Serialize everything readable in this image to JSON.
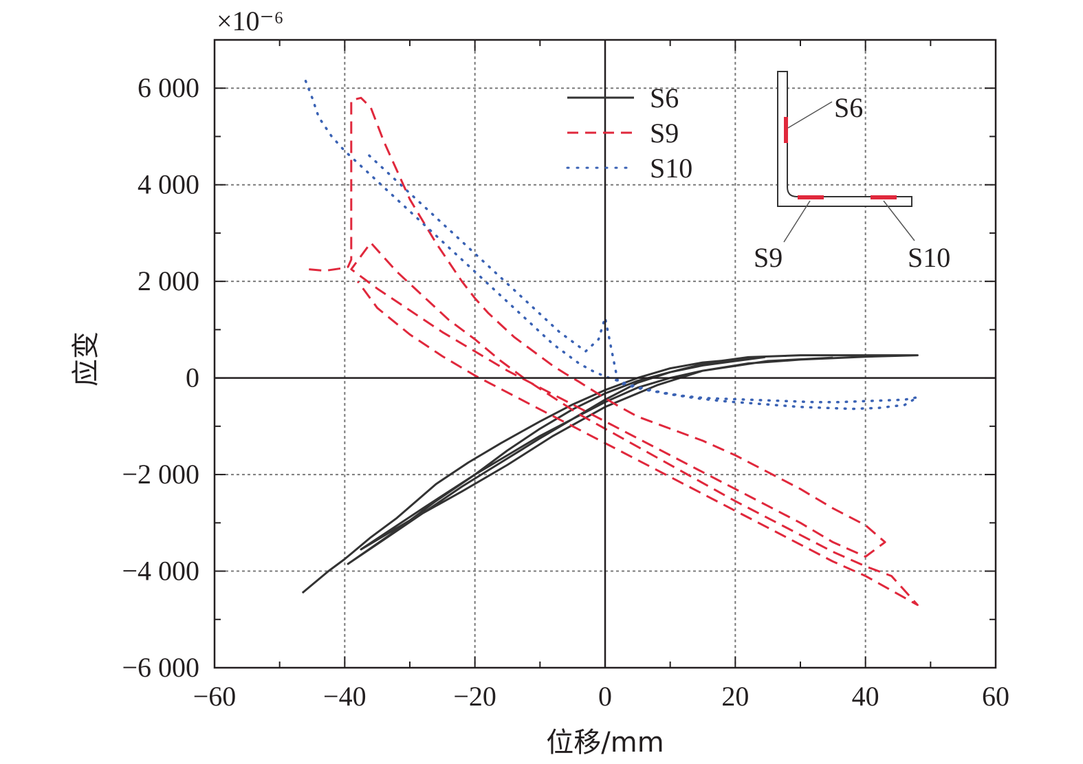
{
  "chart_data": {
    "type": "line",
    "title": "",
    "xlabel": "位移/mm",
    "ylabel": "应变",
    "y_multiplier": "×10⁻⁶",
    "xlim": [
      -60,
      60
    ],
    "ylim": [
      -6000,
      7000
    ],
    "x_ticks": [
      -60,
      -40,
      -20,
      0,
      20,
      40,
      60
    ],
    "x_tick_labels": [
      "−60",
      "−40",
      "−20",
      "0",
      "20",
      "40",
      "60"
    ],
    "y_ticks": [
      -6000,
      -4000,
      -2000,
      0,
      2000,
      4000,
      6000
    ],
    "y_tick_labels": [
      "−6 000",
      "−4 000",
      "−2 000",
      "0",
      "2 000",
      "4 000",
      "6 000"
    ],
    "grid": true,
    "legend_position": "top-center",
    "series": [
      {
        "name": "S6",
        "style": "solid",
        "color": "#333333",
        "points": [
          [
            -46.5,
            -4450
          ],
          [
            -42.5,
            -4000
          ],
          [
            -40,
            -3750
          ],
          [
            -36,
            -3300
          ],
          [
            -32,
            -2900
          ],
          [
            -26,
            -2200
          ],
          [
            -21,
            -1750
          ],
          [
            -16,
            -1350
          ],
          [
            -10,
            -900
          ],
          [
            -5,
            -550
          ],
          [
            0,
            -250
          ],
          [
            5,
            0
          ],
          [
            10,
            200
          ],
          [
            15,
            320
          ],
          [
            20,
            380
          ],
          [
            24.5,
            430
          ],
          [
            20,
            350
          ],
          [
            15,
            260
          ],
          [
            10,
            120
          ],
          [
            5,
            -60
          ],
          [
            0,
            -320
          ],
          [
            -5,
            -650
          ],
          [
            -10,
            -1050
          ],
          [
            -15,
            -1500
          ],
          [
            -20,
            -2000
          ],
          [
            -26,
            -2550
          ],
          [
            -32,
            -3150
          ],
          [
            -39.5,
            -3850
          ],
          [
            -34,
            -3350
          ],
          [
            -28,
            -2800
          ],
          [
            -22,
            -2250
          ],
          [
            -16,
            -1750
          ],
          [
            -10,
            -1250
          ],
          [
            -5,
            -850
          ],
          [
            0,
            -450
          ],
          [
            5,
            -100
          ],
          [
            10,
            120
          ],
          [
            16,
            320
          ],
          [
            22,
            430
          ],
          [
            30,
            470
          ],
          [
            40,
            470
          ],
          [
            48,
            470
          ],
          [
            40,
            440
          ],
          [
            30,
            380
          ],
          [
            22,
            300
          ],
          [
            15,
            150
          ],
          [
            10,
            0
          ],
          [
            5,
            -200
          ],
          [
            0,
            -500
          ],
          [
            -5,
            -850
          ],
          [
            -10,
            -1200
          ],
          [
            -15,
            -1600
          ],
          [
            -20,
            -2000
          ],
          [
            -28,
            -2700
          ],
          [
            -37.5,
            -3550
          ],
          [
            -30,
            -2950
          ],
          [
            -22,
            -2350
          ],
          [
            -15,
            -1800
          ],
          [
            -8,
            -1200
          ],
          [
            0,
            -600
          ],
          [
            8,
            -150
          ],
          [
            15,
            150
          ],
          [
            25,
            350
          ],
          [
            35,
            420
          ]
        ]
      },
      {
        "name": "S9",
        "style": "dashed",
        "color": "#e0283c",
        "points": [
          [
            -45.5,
            2250
          ],
          [
            -43,
            2220
          ],
          [
            -40,
            2280
          ],
          [
            -39.5,
            2300
          ],
          [
            -39,
            2450
          ],
          [
            -39,
            3800
          ],
          [
            -39,
            4500
          ],
          [
            -39,
            5750
          ],
          [
            -37.5,
            5800
          ],
          [
            -36,
            5600
          ],
          [
            -34,
            4900
          ],
          [
            -32,
            4300
          ],
          [
            -30,
            3700
          ],
          [
            -28,
            3250
          ],
          [
            -26,
            2800
          ],
          [
            -24,
            2400
          ],
          [
            -22,
            2000
          ],
          [
            -20,
            1650
          ],
          [
            -18,
            1350
          ],
          [
            -16,
            1100
          ],
          [
            -14,
            850
          ],
          [
            -12,
            650
          ],
          [
            -10,
            450
          ],
          [
            -8,
            250
          ],
          [
            -6,
            80
          ],
          [
            -4,
            -80
          ],
          [
            -2,
            -250
          ],
          [
            0,
            -420
          ],
          [
            2,
            -580
          ],
          [
            5,
            -800
          ],
          [
            10,
            -1050
          ],
          [
            15,
            -1300
          ],
          [
            20,
            -1600
          ],
          [
            25,
            -1950
          ],
          [
            30,
            -2300
          ],
          [
            35,
            -2700
          ],
          [
            40,
            -3050
          ],
          [
            43,
            -3400
          ],
          [
            40,
            -3700
          ],
          [
            35,
            -3400
          ],
          [
            30,
            -3000
          ],
          [
            25,
            -2650
          ],
          [
            20,
            -2300
          ],
          [
            15,
            -1950
          ],
          [
            10,
            -1600
          ],
          [
            5,
            -1250
          ],
          [
            0,
            -900
          ],
          [
            -5,
            -550
          ],
          [
            -10,
            -200
          ],
          [
            -15,
            150
          ],
          [
            -20,
            550
          ],
          [
            -25,
            950
          ],
          [
            -30,
            1400
          ],
          [
            -35,
            1850
          ],
          [
            -39,
            2250
          ],
          [
            -36,
            2800
          ],
          [
            -32,
            2200
          ],
          [
            -28,
            1700
          ],
          [
            -24,
            1200
          ],
          [
            -20,
            800
          ],
          [
            -16,
            350
          ],
          [
            -12,
            -50
          ],
          [
            -8,
            -400
          ],
          [
            -4,
            -750
          ],
          [
            0,
            -1050
          ],
          [
            4,
            -1350
          ],
          [
            8,
            -1650
          ],
          [
            12,
            -1950
          ],
          [
            16,
            -2250
          ],
          [
            20,
            -2550
          ],
          [
            25,
            -2900
          ],
          [
            30,
            -3250
          ],
          [
            35,
            -3600
          ],
          [
            40,
            -3900
          ],
          [
            44,
            -4100
          ],
          [
            48,
            -4700
          ],
          [
            44,
            -4400
          ],
          [
            40,
            -4100
          ],
          [
            35,
            -3800
          ],
          [
            30,
            -3450
          ],
          [
            25,
            -3100
          ],
          [
            20,
            -2750
          ],
          [
            15,
            -2400
          ],
          [
            10,
            -2050
          ],
          [
            5,
            -1700
          ],
          [
            0,
            -1350
          ],
          [
            -5,
            -1000
          ],
          [
            -10,
            -650
          ],
          [
            -15,
            -300
          ],
          [
            -20,
            50
          ],
          [
            -25,
            450
          ],
          [
            -30,
            900
          ],
          [
            -35,
            1450
          ],
          [
            -38,
            2000
          ]
        ]
      },
      {
        "name": "S10",
        "style": "dotted",
        "color": "#3a62b4",
        "points": [
          [
            -46,
            6150
          ],
          [
            -45,
            5800
          ],
          [
            -44,
            5400
          ],
          [
            -42,
            5000
          ],
          [
            -40,
            4700
          ],
          [
            -38,
            4450
          ],
          [
            -36,
            4200
          ],
          [
            -34,
            3950
          ],
          [
            -32,
            3700
          ],
          [
            -30,
            3450
          ],
          [
            -28,
            3200
          ],
          [
            -26,
            2950
          ],
          [
            -24,
            2700
          ],
          [
            -22,
            2450
          ],
          [
            -20,
            2200
          ],
          [
            -18,
            1950
          ],
          [
            -16,
            1700
          ],
          [
            -14,
            1450
          ],
          [
            -12,
            1200
          ],
          [
            -10,
            950
          ],
          [
            -8,
            700
          ],
          [
            -6,
            500
          ],
          [
            -4,
            300
          ],
          [
            -2,
            150
          ],
          [
            0,
            30
          ],
          [
            2,
            -60
          ],
          [
            4,
            -150
          ],
          [
            6,
            -220
          ],
          [
            8,
            -280
          ],
          [
            10,
            -330
          ],
          [
            12,
            -370
          ],
          [
            14,
            -400
          ],
          [
            16,
            -420
          ],
          [
            18,
            -430
          ],
          [
            20,
            -440
          ],
          [
            22,
            -450
          ],
          [
            24,
            -460
          ],
          [
            26,
            -470
          ],
          [
            28,
            -480
          ],
          [
            30,
            -490
          ],
          [
            32,
            -500
          ],
          [
            34,
            -500
          ],
          [
            36,
            -500
          ],
          [
            38,
            -490
          ],
          [
            40,
            -480
          ],
          [
            42,
            -470
          ],
          [
            44,
            -460
          ],
          [
            46,
            -450
          ],
          [
            48,
            -400
          ],
          [
            46,
            -560
          ],
          [
            42,
            -620
          ],
          [
            38,
            -640
          ],
          [
            34,
            -620
          ],
          [
            30,
            -600
          ],
          [
            26,
            -560
          ],
          [
            22,
            -520
          ],
          [
            18,
            -480
          ],
          [
            14,
            -420
          ],
          [
            10,
            -340
          ],
          [
            6,
            -240
          ],
          [
            2,
            -100
          ],
          [
            0,
            1250
          ],
          [
            -1,
            800
          ],
          [
            -3,
            550
          ],
          [
            -5,
            750
          ],
          [
            -7,
            950
          ],
          [
            -9,
            1200
          ],
          [
            -11,
            1450
          ],
          [
            -13,
            1700
          ],
          [
            -15,
            1950
          ],
          [
            -17,
            2200
          ],
          [
            -19,
            2450
          ],
          [
            -21,
            2700
          ],
          [
            -23,
            2950
          ],
          [
            -25,
            3200
          ],
          [
            -27,
            3450
          ],
          [
            -29,
            3700
          ],
          [
            -31,
            3950
          ],
          [
            -33,
            4200
          ],
          [
            -35,
            4450
          ],
          [
            -37,
            4700
          ]
        ]
      }
    ]
  },
  "legend": [
    {
      "label": "S6",
      "style": "solid",
      "color": "#333333"
    },
    {
      "label": "S9",
      "style": "dashed",
      "color": "#e0283c"
    },
    {
      "label": "S10",
      "style": "dotted",
      "color": "#3a62b4"
    }
  ],
  "inset": {
    "labels": {
      "s6": "S6",
      "s9": "S9",
      "s10": "S10"
    },
    "gauge_color": "#e0283c"
  },
  "colors": {
    "axis": "#231f20",
    "grid": "#7a7a7a"
  }
}
